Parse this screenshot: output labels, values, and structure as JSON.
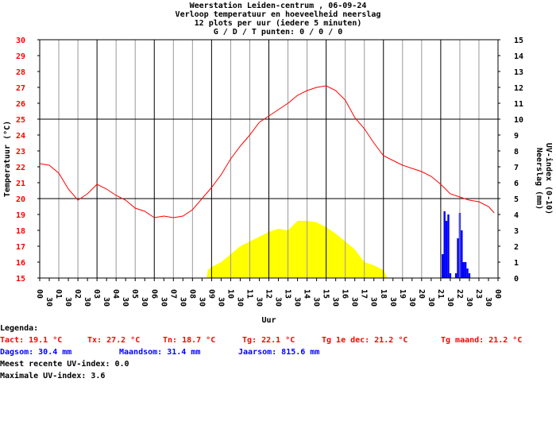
{
  "chart_data": {
    "type": "line",
    "title": [
      "Weerstation Leiden-centrum , 06-09-24",
      "Verloop temperatuur en hoeveelheid neerslag",
      "12 plots per uur (iedere 5 minuten)",
      "G / D / T punten: 0 / 0 / 0"
    ],
    "x_label": "Uur",
    "y_label": "Temperatuur (°C)",
    "y2_label": [
      "Neerslag (mm)",
      "UV-index (0-10)"
    ],
    "xlim": [
      0,
      24
    ],
    "xticks": [
      {
        "value": 0,
        "label": "00"
      },
      {
        "value": 0.5,
        "label": "30"
      },
      {
        "value": 1,
        "label": "01"
      },
      {
        "value": 1.5,
        "label": "30"
      },
      {
        "value": 2,
        "label": "02"
      },
      {
        "value": 2.5,
        "label": "30"
      },
      {
        "value": 3,
        "label": "03"
      },
      {
        "value": 3.5,
        "label": "30"
      },
      {
        "value": 4,
        "label": "04"
      },
      {
        "value": 4.5,
        "label": "30"
      },
      {
        "value": 5,
        "label": "05"
      },
      {
        "value": 5.5,
        "label": "30"
      },
      {
        "value": 6,
        "label": "06"
      },
      {
        "value": 6.5,
        "label": "30"
      },
      {
        "value": 7,
        "label": "07"
      },
      {
        "value": 7.5,
        "label": "30"
      },
      {
        "value": 8,
        "label": "08"
      },
      {
        "value": 8.5,
        "label": "30"
      },
      {
        "value": 9,
        "label": "09"
      },
      {
        "value": 9.5,
        "label": "30"
      },
      {
        "value": 10,
        "label": "10"
      },
      {
        "value": 10.5,
        "label": "30"
      },
      {
        "value": 11,
        "label": "11"
      },
      {
        "value": 11.5,
        "label": "30"
      },
      {
        "value": 12,
        "label": "12"
      },
      {
        "value": 12.5,
        "label": "30"
      },
      {
        "value": 13,
        "label": "13"
      },
      {
        "value": 13.5,
        "label": "30"
      },
      {
        "value": 14,
        "label": "14"
      },
      {
        "value": 14.5,
        "label": "30"
      },
      {
        "value": 15,
        "label": "15"
      },
      {
        "value": 15.5,
        "label": "30"
      },
      {
        "value": 16,
        "label": "16"
      },
      {
        "value": 16.5,
        "label": "30"
      },
      {
        "value": 17,
        "label": "17"
      },
      {
        "value": 17.5,
        "label": "30"
      },
      {
        "value": 18,
        "label": "18"
      },
      {
        "value": 18.5,
        "label": "30"
      },
      {
        "value": 19,
        "label": "19"
      },
      {
        "value": 19.5,
        "label": "30"
      },
      {
        "value": 20,
        "label": "20"
      },
      {
        "value": 20.5,
        "label": "30"
      },
      {
        "value": 21,
        "label": "21"
      },
      {
        "value": 21.5,
        "label": "30"
      },
      {
        "value": 22,
        "label": "22"
      },
      {
        "value": 22.5,
        "label": "30"
      },
      {
        "value": 23,
        "label": "23"
      },
      {
        "value": 23.5,
        "label": "30"
      },
      {
        "value": 24,
        "label": "00"
      }
    ],
    "ylim": [
      15,
      30
    ],
    "yticks": [
      15,
      16,
      17,
      18,
      19,
      20,
      21,
      22,
      23,
      24,
      25,
      26,
      27,
      28,
      29,
      30
    ],
    "y2lim": [
      0,
      15
    ],
    "y2ticks": [
      0,
      1,
      2,
      3,
      4,
      5,
      6,
      7,
      8,
      9,
      10,
      11,
      12,
      13,
      14,
      15
    ],
    "grid": true,
    "series": [
      {
        "kind": "line",
        "color": "#ff0000",
        "x": [
          0,
          0.5,
          1,
          1.5,
          2,
          2.5,
          3,
          3.5,
          4,
          4.5,
          5,
          5.5,
          6,
          6.5,
          7,
          7.5,
          8,
          8.5,
          9,
          9.5,
          10,
          10.5,
          11,
          11.5,
          12,
          12.5,
          13,
          13.5,
          14,
          14.5,
          15,
          15.5,
          16,
          16.5,
          17,
          17.5,
          18,
          18.5,
          19,
          19.5,
          20,
          20.5,
          21,
          21.5,
          22,
          22.5,
          23,
          23.5,
          23.8
        ],
        "values": [
          22.2,
          22.1,
          21.6,
          20.6,
          19.9,
          20.3,
          20.9,
          20.6,
          20.2,
          19.9,
          19.4,
          19.2,
          18.8,
          18.9,
          18.8,
          18.9,
          19.3,
          20.0,
          20.7,
          21.5,
          22.5,
          23.3,
          24.0,
          24.8,
          25.2,
          25.6,
          26.0,
          26.5,
          26.8,
          27.0,
          27.1,
          26.8,
          26.2,
          25.1,
          24.4,
          23.5,
          22.7,
          22.4,
          22.1,
          21.9,
          21.7,
          21.4,
          20.9,
          20.3,
          20.1,
          19.9,
          19.8,
          19.5,
          19.1
        ]
      },
      {
        "kind": "area",
        "axis": "y2",
        "color": "#ffff00",
        "x": [
          8.75,
          8.8,
          9,
          9.5,
          10,
          10.5,
          11,
          11.5,
          12,
          12.5,
          13,
          13.5,
          14,
          14.5,
          15,
          15.5,
          16,
          16.5,
          17,
          17.5,
          18,
          18.2
        ],
        "values": [
          0,
          0.5,
          0.7,
          1.0,
          1.5,
          2.0,
          2.3,
          2.6,
          2.9,
          3.1,
          3.0,
          3.6,
          3.6,
          3.5,
          3.2,
          2.8,
          2.3,
          1.8,
          1.0,
          0.8,
          0.5,
          0
        ]
      },
      {
        "kind": "bar",
        "axis": "y2",
        "color": "#0000ff",
        "x": [
          21.1,
          21.2,
          21.3,
          21.4,
          21.5,
          21.8,
          21.9,
          22.0,
          22.1,
          22.2,
          22.3,
          22.4,
          22.5
        ],
        "values": [
          1.5,
          4.2,
          3.6,
          4.0,
          0.3,
          0.3,
          2.5,
          4.1,
          3.0,
          1.0,
          1.0,
          0.6,
          0.3
        ]
      }
    ],
    "legend": {
      "title": "Legenda:",
      "temperature": [
        "Tact: 19.1 °C",
        "Tx: 27.2 °C",
        "Tn: 18.7 °C",
        "Tg: 22.1 °C",
        "Tg 1e dec: 21.2 °C",
        "Tg maand: 21.2 °C"
      ],
      "rain": [
        "Dagsom: 30.4 mm",
        "Maandsom: 31.4 mm",
        "Jaarsom: 815.6 mm"
      ],
      "uv": [
        "Meest recente UV-index: 0.0",
        "Maximale UV-index: 3.6"
      ]
    }
  }
}
